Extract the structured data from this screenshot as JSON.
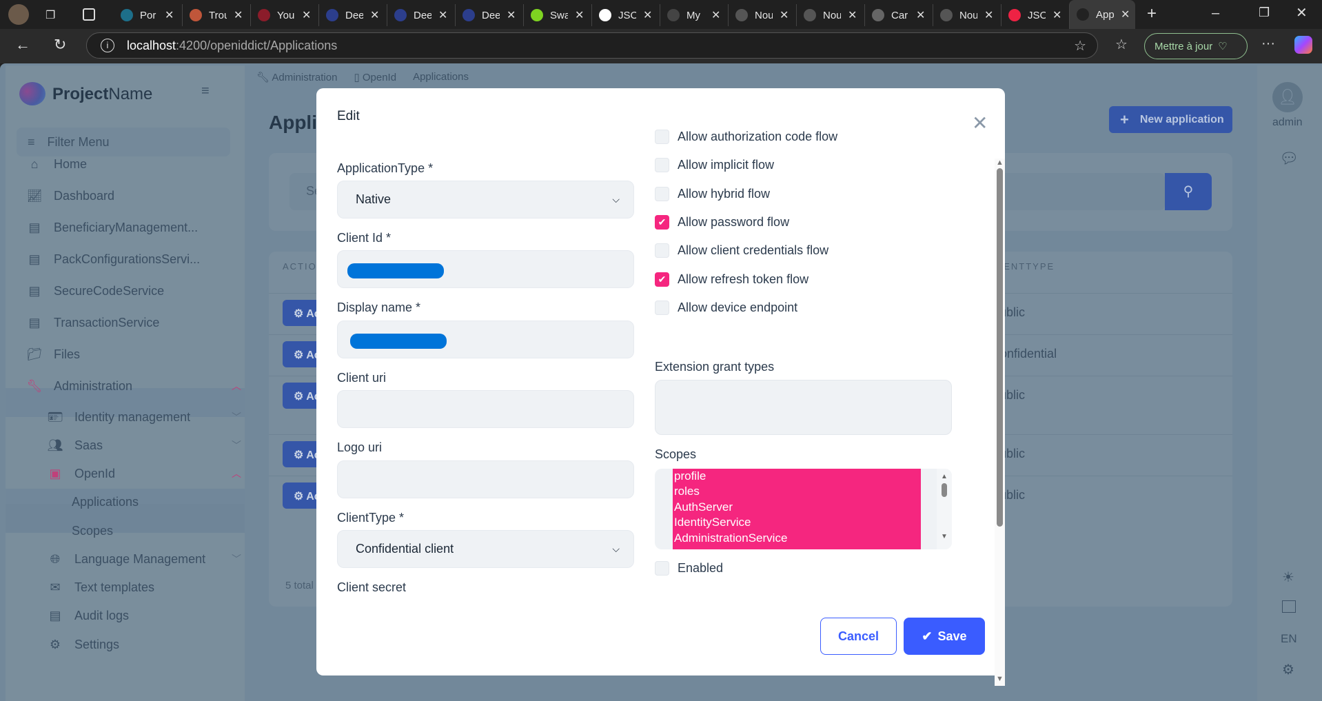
{
  "browser": {
    "tabs": [
      {
        "title": "Por",
        "color": "#1d6f8a"
      },
      {
        "title": "Trou",
        "color": "#c0563a"
      },
      {
        "title": "You",
        "color": "#8b1c2a"
      },
      {
        "title": "Dee",
        "color": "#2c3e8c"
      },
      {
        "title": "Dee",
        "color": "#2c3e8c"
      },
      {
        "title": "Dee",
        "color": "#2c3e8c"
      },
      {
        "title": "Swa",
        "color": "#7ed321"
      },
      {
        "title": "JSO",
        "color": "#ffffff"
      },
      {
        "title": "My",
        "color": "#444444"
      },
      {
        "title": "Nou",
        "color": "#555555"
      },
      {
        "title": "Nou",
        "color": "#555555"
      },
      {
        "title": "Car",
        "color": "#666666"
      },
      {
        "title": "Nou",
        "color": "#555555"
      },
      {
        "title": "JSO",
        "color": "#e24"
      },
      {
        "title": "App",
        "color": "#222222",
        "active": true
      }
    ],
    "url_host": "localhost",
    "url_path": ":4200/openiddict/Applications",
    "update_label": "Mettre à jour"
  },
  "sidebar": {
    "brand_bold": "Project",
    "brand_rest": "Name",
    "filter_label": "Filter Menu",
    "items": [
      {
        "label": "Home",
        "icon": "home-icon"
      },
      {
        "label": "Dashboard",
        "icon": "chart-icon"
      },
      {
        "label": "BeneficiaryManagement...",
        "icon": "book-icon"
      },
      {
        "label": "PackConfigurationsServi...",
        "icon": "book-icon"
      },
      {
        "label": "SecureCodeService",
        "icon": "book-icon"
      },
      {
        "label": "TransactionService",
        "icon": "book-icon"
      },
      {
        "label": "Files",
        "icon": "folder-icon"
      },
      {
        "label": "Administration",
        "icon": "wrench-icon"
      },
      {
        "label": "Identity management",
        "icon": "id-card-icon"
      },
      {
        "label": "Saas",
        "icon": "users-icon"
      },
      {
        "label": "OpenId",
        "icon": "openid-icon"
      },
      {
        "label": "Applications"
      },
      {
        "label": "Scopes"
      },
      {
        "label": "Language Management",
        "icon": "globe-icon"
      },
      {
        "label": "Text templates",
        "icon": "envelope-icon"
      },
      {
        "label": "Audit logs",
        "icon": "file-icon"
      },
      {
        "label": "Settings",
        "icon": "gear-icon"
      }
    ]
  },
  "breadcrumb": [
    "Administration",
    "OpenId",
    "Applications"
  ],
  "page": {
    "title": "Applications",
    "new_button": "New application",
    "search_placeholder": "Search",
    "col_actions": "ACTIONS",
    "col_clienttype": "CLIENTTYPE",
    "action_label": "Actions",
    "rows": [
      "Public",
      "Confidential",
      "Public",
      "Public",
      "Public"
    ],
    "total": "5 total"
  },
  "rail": {
    "user": "admin",
    "lang": "EN"
  },
  "modal": {
    "title": "Edit",
    "application_type_label": "ApplicationType *",
    "application_type_value": "Native",
    "client_id_label": "Client Id *",
    "display_name_label": "Display name *",
    "client_uri_label": "Client uri",
    "logo_uri_label": "Logo uri",
    "client_type_label": "ClientType *",
    "client_type_value": "Confidential client",
    "client_secret_label": "Client secret",
    "flows": [
      {
        "label": "Allow authorization code flow",
        "checked": false
      },
      {
        "label": "Allow implicit flow",
        "checked": false
      },
      {
        "label": "Allow hybrid flow",
        "checked": false
      },
      {
        "label": "Allow password flow",
        "checked": true
      },
      {
        "label": "Allow client credentials flow",
        "checked": false
      },
      {
        "label": "Allow refresh token flow",
        "checked": true
      },
      {
        "label": "Allow device endpoint",
        "checked": false
      }
    ],
    "extension_label": "Extension grant types",
    "scopes_label": "Scopes",
    "scopes": [
      "profile",
      "roles",
      "AuthServer",
      "IdentityService",
      "AdministrationService",
      ""
    ],
    "enabled_label": "Enabled",
    "enabled": false,
    "cancel": "Cancel",
    "save": "Save",
    "accent": "#f5267f",
    "primary": "#3a5cff"
  }
}
